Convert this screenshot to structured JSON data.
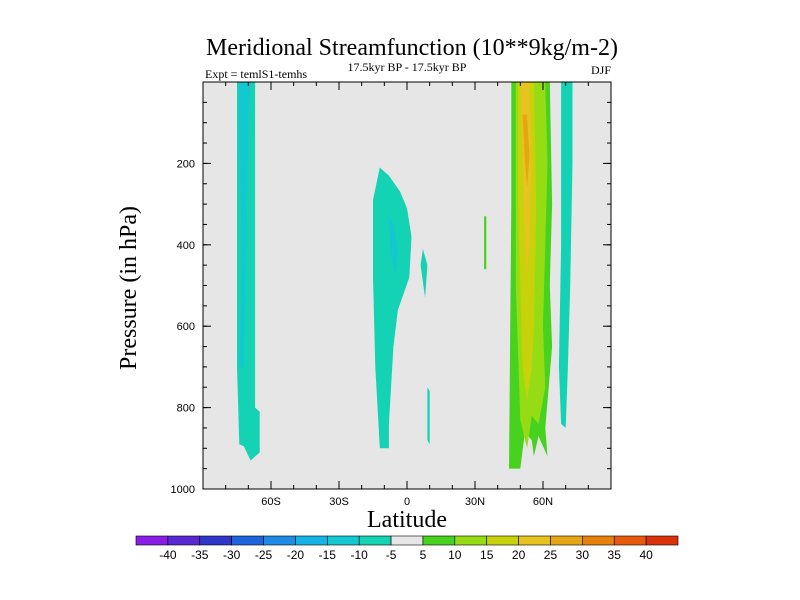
{
  "chart_data": {
    "type": "contour",
    "title": "Meridional Streamfunction (10**9kg/m-2)",
    "subtitle": "17.5kyr BP - 17.5kyr BP",
    "left_label": "Expt = temlS1-temhs",
    "right_label": "DJF",
    "xlabel": "Latitude",
    "ylabel": "Pressure (in hPa)",
    "xlim": [
      -90,
      90
    ],
    "ylim": [
      0,
      1000
    ],
    "y_reversed": true,
    "x_ticks": [
      {
        "value": -60,
        "label": "60S"
      },
      {
        "value": -30,
        "label": "30S"
      },
      {
        "value": 0,
        "label": "0"
      },
      {
        "value": 30,
        "label": "30N"
      },
      {
        "value": 60,
        "label": "60N"
      }
    ],
    "y_ticks": [
      {
        "value": 200,
        "label": "200"
      },
      {
        "value": 400,
        "label": "400"
      },
      {
        "value": 600,
        "label": "600"
      },
      {
        "value": 800,
        "label": "800"
      },
      {
        "value": 1000,
        "label": "1000"
      }
    ],
    "background_color": "#e6e6e6",
    "colorbar": {
      "colors": [
        "#8a1ee6",
        "#5a28d2",
        "#2f37c8",
        "#1e64dc",
        "#1e8ce6",
        "#14b4e6",
        "#14c8d2",
        "#14d2b4",
        "#e6e6e6",
        "#46d21e",
        "#96dc14",
        "#c8d20a",
        "#e6c31e",
        "#e6a514",
        "#e6820a",
        "#e65a0a",
        "#dc320a"
      ],
      "labels": [
        "-40",
        "-35",
        "-30",
        "-25",
        "-20",
        "-15",
        "-10",
        "-5",
        "5",
        "10",
        "15",
        "20",
        "25",
        "30",
        "35",
        "40"
      ]
    },
    "regions": [
      {
        "name": "sh-high-lat-cell",
        "level": -5,
        "color": "#14d2b4",
        "points": [
          [
            -75,
            0
          ],
          [
            -67,
            0
          ],
          [
            -67,
            800
          ],
          [
            -65,
            810
          ],
          [
            -65,
            910
          ],
          [
            -69,
            930
          ],
          [
            -72,
            895
          ],
          [
            -74,
            890
          ],
          [
            -75,
            700
          ]
        ]
      },
      {
        "name": "sh-high-lat-core",
        "level": -10,
        "color": "#14c8d2",
        "points": [
          [
            -74,
            0
          ],
          [
            -69,
            0
          ],
          [
            -70,
            100
          ],
          [
            -71,
            400
          ],
          [
            -72,
            700
          ],
          [
            -74,
            700
          ],
          [
            -73,
            400
          ],
          [
            -74,
            150
          ]
        ]
      },
      {
        "name": "tropical-cell",
        "level": -5,
        "color": "#14d2b4",
        "points": [
          [
            -15,
            290
          ],
          [
            -12,
            210
          ],
          [
            -8,
            230
          ],
          [
            -3,
            270
          ],
          [
            0,
            310
          ],
          [
            2,
            380
          ],
          [
            1,
            480
          ],
          [
            -4,
            560
          ],
          [
            -6,
            650
          ],
          [
            -8,
            840
          ],
          [
            -8,
            900
          ],
          [
            -12,
            900
          ],
          [
            -14,
            700
          ],
          [
            -15,
            480
          ]
        ]
      },
      {
        "name": "tropical-core",
        "level": -10,
        "color": "#14c8d2",
        "points": [
          [
            -8,
            330
          ],
          [
            -6,
            350
          ],
          [
            -4,
            410
          ],
          [
            -5,
            470
          ],
          [
            -7,
            430
          ]
        ]
      },
      {
        "name": "eq-blob-a",
        "level": -5,
        "color": "#14d2b4",
        "points": [
          [
            6,
            450
          ],
          [
            7,
            410
          ],
          [
            9,
            450
          ],
          [
            8,
            530
          ]
        ]
      },
      {
        "name": "eq-blob-b",
        "level": -5,
        "color": "#14d2b4",
        "points": [
          [
            9,
            750
          ],
          [
            10,
            760
          ],
          [
            10,
            890
          ],
          [
            9,
            880
          ]
        ]
      },
      {
        "name": "nh-thin-line",
        "level": 5,
        "color": "#46d21e",
        "points": [
          [
            34,
            330
          ],
          [
            35,
            330
          ],
          [
            35,
            460
          ],
          [
            34,
            460
          ]
        ]
      },
      {
        "name": "nh-midlat-cell",
        "level": 5,
        "color": "#46d21e",
        "points": [
          [
            46,
            0
          ],
          [
            63,
            0
          ],
          [
            64,
            300
          ],
          [
            63,
            500
          ],
          [
            64,
            650
          ],
          [
            61,
            850
          ],
          [
            62,
            920
          ],
          [
            58,
            870
          ],
          [
            56,
            920
          ],
          [
            55,
            880
          ],
          [
            52,
            860
          ],
          [
            50,
            950
          ],
          [
            45,
            950
          ],
          [
            46,
            300
          ]
        ]
      },
      {
        "name": "nh-midlat-core-15",
        "level": 15,
        "color": "#96dc14",
        "points": [
          [
            48,
            0
          ],
          [
            61,
            0
          ],
          [
            62,
            200
          ],
          [
            61,
            400
          ],
          [
            60,
            600
          ],
          [
            61,
            750
          ],
          [
            60,
            780
          ],
          [
            58,
            840
          ],
          [
            55,
            820
          ],
          [
            53,
            900
          ],
          [
            50,
            830
          ],
          [
            48,
            500
          ]
        ]
      },
      {
        "name": "nh-midlat-core-20",
        "level": 20,
        "color": "#c8d20a",
        "points": [
          [
            49,
            0
          ],
          [
            56,
            0
          ],
          [
            57,
            300
          ],
          [
            56,
            600
          ],
          [
            55,
            700
          ],
          [
            53,
            780
          ],
          [
            51,
            700
          ],
          [
            50,
            500
          ],
          [
            49,
            300
          ]
        ]
      },
      {
        "name": "nh-midlat-core-25",
        "level": 25,
        "color": "#e6c31e",
        "points": [
          [
            50,
            0
          ],
          [
            54,
            0
          ],
          [
            55,
            200
          ],
          [
            54,
            400
          ],
          [
            53,
            480
          ],
          [
            52,
            400
          ],
          [
            51,
            200
          ]
        ]
      },
      {
        "name": "nh-midlat-core-30",
        "level": 30,
        "color": "#e6a514",
        "points": [
          [
            51,
            80
          ],
          [
            53,
            80
          ],
          [
            54,
            180
          ],
          [
            53,
            260
          ],
          [
            52,
            190
          ]
        ]
      },
      {
        "name": "nh-polar-cell",
        "level": -5,
        "color": "#14d2b4",
        "points": [
          [
            68,
            0
          ],
          [
            73,
            0
          ],
          [
            73,
            200
          ],
          [
            72,
            500
          ],
          [
            71,
            700
          ],
          [
            70,
            850
          ],
          [
            68,
            840
          ],
          [
            67,
            700
          ],
          [
            68,
            400
          ]
        ]
      }
    ]
  }
}
